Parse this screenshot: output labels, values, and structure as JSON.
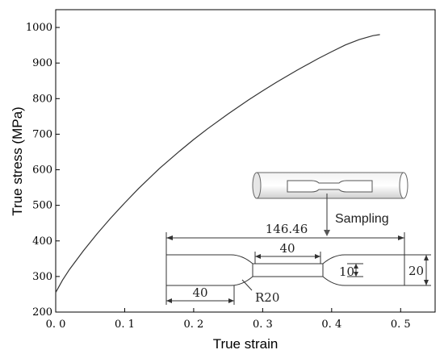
{
  "chart_data": {
    "type": "line",
    "xlabel": "True strain",
    "ylabel": "True stress (MPa)",
    "xlim": [
      0.0,
      0.55
    ],
    "ylim": [
      200,
      1050
    ],
    "xticks": [
      0.0,
      0.1,
      0.2,
      0.3,
      0.4,
      0.5
    ],
    "xtick_labels": [
      "0. 0",
      "0. 1",
      "0. 2",
      "0. 3",
      "0. 4",
      "0. 5"
    ],
    "yticks": [
      200,
      300,
      400,
      500,
      600,
      700,
      800,
      900,
      1000
    ],
    "grid": false,
    "series": [
      {
        "x": [
          0.0,
          0.01,
          0.02,
          0.04,
          0.06,
          0.08,
          0.1,
          0.12,
          0.15,
          0.18,
          0.2,
          0.22,
          0.25,
          0.28,
          0.3,
          0.32,
          0.35,
          0.38,
          0.4,
          0.42,
          0.44,
          0.46,
          0.47
        ],
        "y": [
          255,
          290,
          320,
          372,
          420,
          465,
          507,
          547,
          603,
          653,
          685,
          715,
          757,
          797,
          822,
          846,
          880,
          912,
          932,
          951,
          966,
          977,
          980
        ]
      }
    ]
  },
  "inset": {
    "sampling_label": "Sampling",
    "dims": {
      "total_length": "146.46",
      "gauge_length": "40",
      "grip_length": "40",
      "gauge_width": "10",
      "grip_width": "20",
      "radius": "R20"
    }
  }
}
